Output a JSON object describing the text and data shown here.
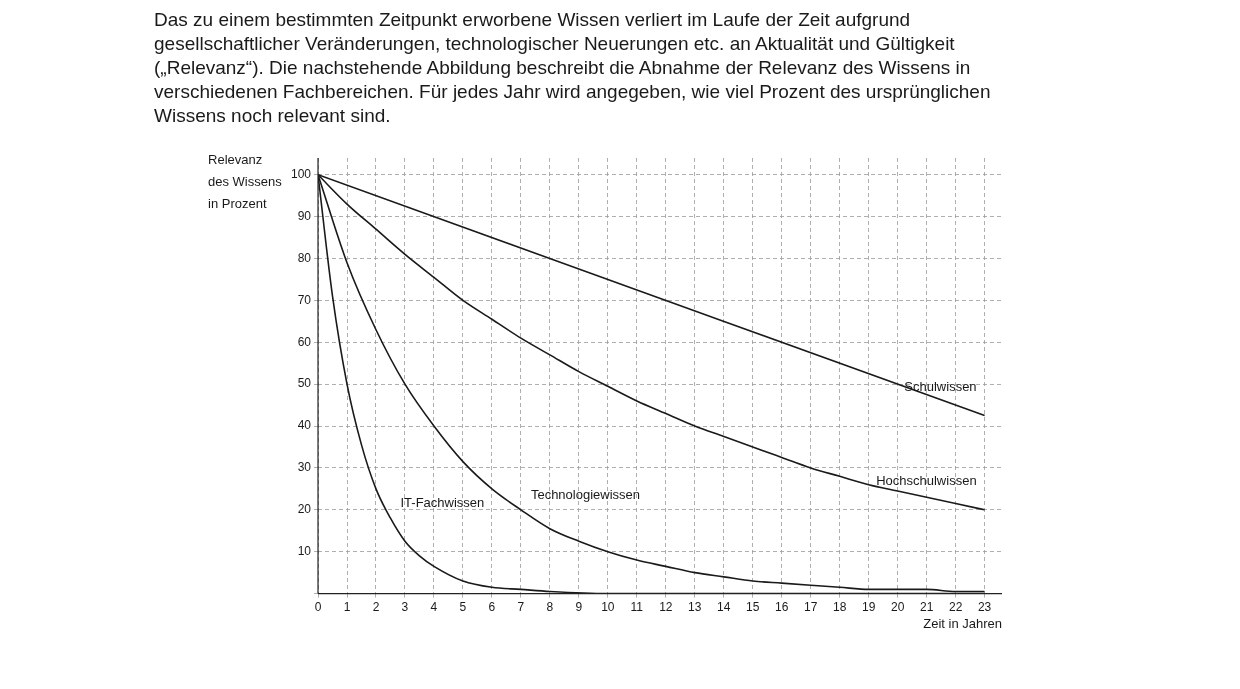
{
  "chart_data": {
    "type": "line",
    "title": "Das zu einem bestimmten Zeitpunkt erworbene Wissen verliert im Laufe der Zeit aufgrund gesellschaftlicher Veränderungen, technologischer Neuerungen etc. an Aktualität und Gültigkeit („Relevanz“). Die nachstehende Abbildung beschreibt die Abnahme der Relevanz des Wissens in verschiedenen Fachbereichen. Für jedes Jahr wird angegeben, wie viel Prozent des ursprünglichen Wissens noch relevant sind.",
    "xlabel": "Zeit in Jahren",
    "ylabel": "Relevanz\ndes Wissens\nin Prozent",
    "series": [
      {
        "name": "Schulwissen",
        "color": "#1a1a1a",
        "x": [
          0,
          23
        ],
        "values": [
          100,
          42.5
        ]
      },
      {
        "name": "Hochschulwissen",
        "color": "#1a1a1a",
        "x": [
          0,
          1,
          2,
          3,
          4,
          5,
          6,
          7,
          8,
          9,
          10,
          11,
          12,
          13,
          14,
          15,
          16,
          17,
          18,
          19,
          20,
          21,
          22,
          23
        ],
        "values": [
          100,
          93,
          87,
          81,
          75.5,
          70,
          65.5,
          61,
          57,
          53,
          49.5,
          46,
          43,
          40,
          37.5,
          35,
          32.5,
          30,
          28,
          26,
          24.5,
          23,
          21.5,
          20
        ]
      },
      {
        "name": "Technologiewissen",
        "color": "#1a1a1a",
        "x": [
          0,
          1,
          2,
          3,
          4,
          5,
          6,
          7,
          8,
          9,
          10,
          11,
          12,
          13,
          14,
          15,
          16,
          17,
          18,
          19,
          20,
          21,
          22,
          23
        ],
        "values": [
          100,
          79,
          63,
          50,
          40,
          31.5,
          25,
          20,
          15.5,
          12.5,
          10,
          8,
          6.5,
          5,
          4,
          3,
          2.5,
          2,
          1.5,
          1,
          1,
          1,
          0.5,
          0.5
        ]
      },
      {
        "name": "IT-Fachwissen",
        "color": "#1a1a1a",
        "x": [
          0,
          0.5,
          1,
          1.5,
          2,
          2.5,
          3,
          3.5,
          4,
          5,
          6,
          7,
          8,
          10,
          12,
          23
        ],
        "values": [
          100,
          71,
          50,
          35.5,
          25,
          18,
          12.5,
          9,
          6.5,
          3,
          1.5,
          1,
          0.5,
          0,
          0,
          0
        ]
      }
    ],
    "xlim": [
      0,
      23.6
    ],
    "ylim": [
      0,
      104
    ],
    "xticks": [
      0,
      1,
      2,
      3,
      4,
      5,
      6,
      7,
      8,
      9,
      10,
      11,
      12,
      13,
      14,
      15,
      16,
      17,
      18,
      19,
      20,
      21,
      22,
      23
    ],
    "yticks": [
      {
        "value": 0,
        "label": null
      },
      10,
      20,
      30,
      40,
      50,
      60,
      70,
      80,
      90,
      100
    ],
    "grid": true,
    "legend": false,
    "marker": "none",
    "line_style": "solid"
  }
}
